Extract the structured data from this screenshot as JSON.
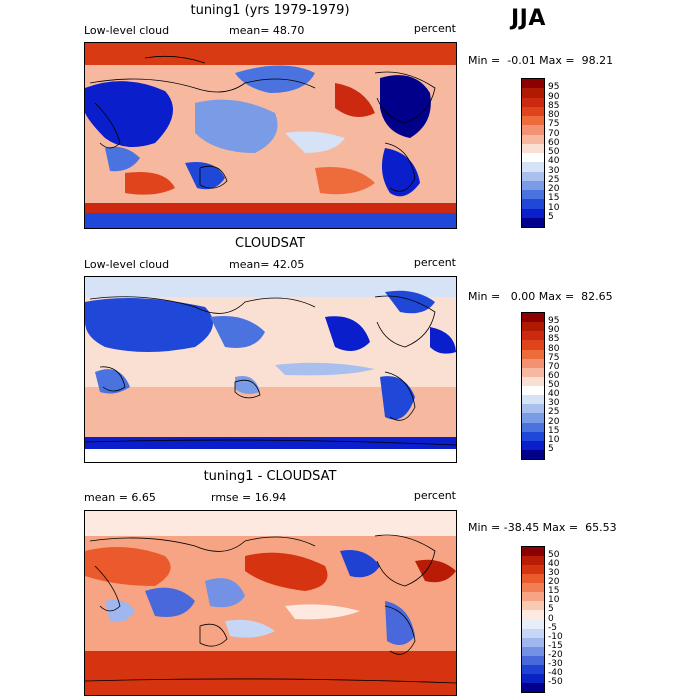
{
  "season": "JJA",
  "panels": [
    {
      "id": "model",
      "title": "tuning1 (yrs 1979-1979)",
      "left_label": "Low-level cloud",
      "mid_label": "mean=  48.70",
      "right_label": "percent",
      "minmax": "Min =  -0.01 Max =  98.21",
      "colorbar_ticks": [
        "95",
        "90",
        "85",
        "80",
        "75",
        "70",
        "60",
        "50",
        "40",
        "30",
        "25",
        "20",
        "15",
        "10",
        "5"
      ]
    },
    {
      "id": "obs",
      "title": "CLOUDSAT",
      "left_label": "Low-level cloud",
      "mid_label": "mean=  42.05",
      "right_label": "percent",
      "minmax": "Min =   0.00 Max =  82.65",
      "colorbar_ticks": [
        "95",
        "90",
        "85",
        "80",
        "75",
        "70",
        "60",
        "50",
        "40",
        "30",
        "25",
        "20",
        "15",
        "10",
        "5"
      ]
    },
    {
      "id": "diff",
      "title": "tuning1 - CLOUDSAT",
      "left_label": "mean =   6.65",
      "mid_label": "rmse =  16.94",
      "right_label": "percent",
      "minmax": "Min = -38.45 Max =  65.53",
      "colorbar_ticks": [
        "50",
        "40",
        "30",
        "20",
        "15",
        "10",
        "5",
        "0",
        "-5",
        "-10",
        "-15",
        "-20",
        "-30",
        "-40",
        "-50"
      ]
    }
  ],
  "colors": {
    "abs_scale": [
      "#8b0000",
      "#b01a00",
      "#cc2a10",
      "#e0441c",
      "#ee6b3c",
      "#f39272",
      "#f7b8a0",
      "#fae0d2",
      "#ffffff",
      "#d6e2f6",
      "#a9c0ee",
      "#7a9be6",
      "#4a73df",
      "#1f47d8",
      "#0a1ecc",
      "#00008b"
    ],
    "diff_scale": [
      "#8b0000",
      "#b81c06",
      "#d63410",
      "#ea5a2c",
      "#f27e56",
      "#f6a484",
      "#fac9b4",
      "#fde9df",
      "#e6eefb",
      "#c6d6f5",
      "#9fb6ee",
      "#7392e5",
      "#4868dc",
      "#2042d2",
      "#0a22c2",
      "#00008b"
    ],
    "land_outline": "#000000"
  }
}
